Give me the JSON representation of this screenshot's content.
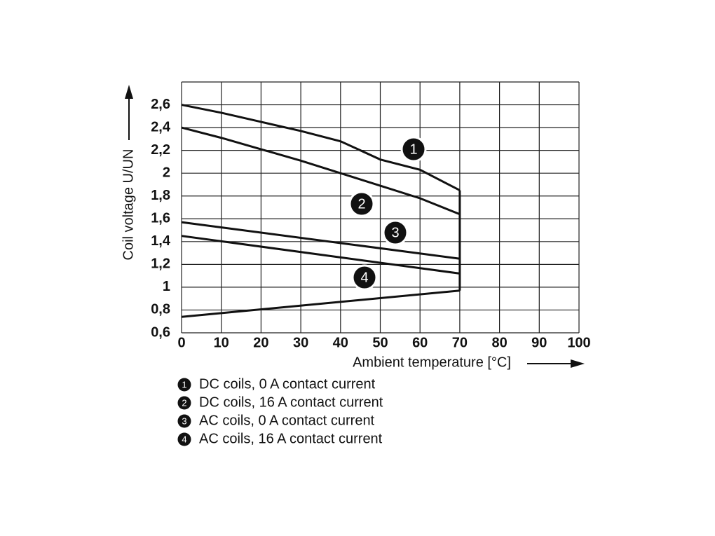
{
  "chart_data": {
    "type": "line",
    "x_label": "Ambient temperature [°C]",
    "y_label": "Coil voltage U/UN",
    "xlim": [
      0,
      100
    ],
    "xticks": [
      0,
      10,
      20,
      30,
      40,
      50,
      60,
      70,
      80,
      90,
      100
    ],
    "ylim": [
      0.6,
      2.8
    ],
    "yticks": [
      {
        "value": 0.6,
        "label": "0,6"
      },
      {
        "value": 0.8,
        "label": "0,8"
      },
      1,
      {
        "value": 1.2,
        "label": "1,2"
      },
      {
        "value": 1.4,
        "label": "1,4"
      },
      {
        "value": 1.6,
        "label": "1,6"
      },
      {
        "value": 1.8,
        "label": "1,8"
      },
      2,
      {
        "value": 2.2,
        "label": "2,2"
      },
      {
        "value": 2.4,
        "label": "2,4"
      },
      {
        "value": 2.6,
        "label": "2,6"
      }
    ],
    "grid": true,
    "series": [
      {
        "name": "DC coils, 0 A contact current",
        "marker": "1",
        "color": "#111111",
        "x": [
          0,
          10,
          20,
          30,
          40,
          50,
          60,
          70
        ],
        "values": [
          2.6,
          2.53,
          2.45,
          2.37,
          2.28,
          2.12,
          2.03,
          1.85
        ]
      },
      {
        "name": "DC coils, 16 A contact current",
        "marker": "2",
        "color": "#111111",
        "x": [
          0,
          10,
          20,
          30,
          40,
          50,
          60,
          70
        ],
        "values": [
          2.4,
          2.31,
          2.21,
          2.11,
          2.0,
          1.89,
          1.78,
          1.64
        ]
      },
      {
        "name": "AC coils, 0 A contact current",
        "marker": "3",
        "color": "#111111",
        "x": [
          0,
          70
        ],
        "values": [
          1.57,
          1.25
        ]
      },
      {
        "name": "AC coils, 16 A contact current",
        "marker": "4",
        "color": "#111111",
        "x": [
          0,
          70
        ],
        "values": [
          1.45,
          1.12
        ]
      }
    ],
    "lower_limit": {
      "color": "#111111",
      "x": [
        0,
        70
      ],
      "values": [
        0.74,
        0.97
      ]
    }
  }
}
